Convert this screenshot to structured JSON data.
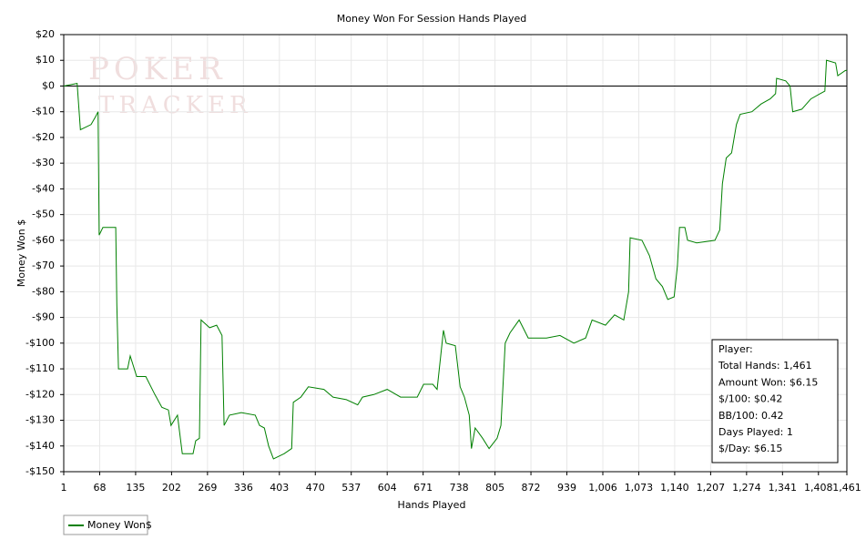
{
  "chart_data": {
    "type": "line",
    "title": "Money Won For Session Hands Played",
    "x_label": "Hands Played",
    "y_label": "Money Won $",
    "watermark": [
      "POKER",
      "TRACKER"
    ],
    "info_box": [
      "Player:",
      "Total Hands: 1,461",
      "Amount Won: $6.15",
      "$/100: $0.42",
      "BB/100: 0.42",
      "Days Played: 1",
      "$/Day: $6.15"
    ],
    "x": [
      1,
      26,
      32,
      52,
      60,
      65,
      67,
      74,
      98,
      100,
      103,
      120,
      125,
      137,
      154,
      171,
      184,
      196,
      201,
      213,
      222,
      242,
      247,
      254,
      257,
      273,
      286,
      296,
      300,
      310,
      332,
      358,
      366,
      375,
      383,
      392,
      412,
      426,
      429,
      443,
      457,
      486,
      503,
      528,
      549,
      558,
      579,
      604,
      629,
      660,
      672,
      689,
      697,
      709,
      714,
      731,
      740,
      748,
      757,
      761,
      768,
      782,
      794,
      809,
      816,
      824,
      833,
      850,
      867,
      901,
      926,
      952,
      974,
      986,
      1011,
      1028,
      1045,
      1054,
      1057,
      1079,
      1093,
      1105,
      1117,
      1127,
      1139,
      1145,
      1149,
      1159,
      1164,
      1181,
      1215,
      1224,
      1229,
      1236,
      1246,
      1255,
      1262,
      1284,
      1301,
      1318,
      1328,
      1330,
      1347,
      1355,
      1360,
      1377,
      1394,
      1411,
      1420,
      1423,
      1440,
      1444,
      1458,
      1461
    ],
    "series": [
      {
        "name": "Money Won$",
        "color": "#008000",
        "values": [
          0,
          1,
          -17,
          -15,
          -12,
          -10,
          -58,
          -55,
          -55,
          -85,
          -110,
          -110,
          -105,
          -113,
          -113,
          -120,
          -125,
          -126,
          -132,
          -128,
          -143,
          -143,
          -138,
          -137,
          -91,
          -94,
          -93,
          -97,
          -132,
          -128,
          -127,
          -128,
          -132,
          -133,
          -140,
          -145,
          -143,
          -141,
          -123,
          -121,
          -117,
          -118,
          -121,
          -122,
          -124,
          -121,
          -120,
          -118,
          -121,
          -121,
          -116,
          -116,
          -118,
          -95,
          -100,
          -101,
          -117,
          -121,
          -128,
          -141,
          -133,
          -137,
          -141,
          -137,
          -132,
          -100,
          -96,
          -91,
          -98,
          -98,
          -97,
          -100,
          -98,
          -91,
          -93,
          -89,
          -91,
          -80,
          -59,
          -60,
          -66,
          -75,
          -78,
          -83,
          -82,
          -70,
          -55,
          -55,
          -60,
          -61,
          -60,
          -56,
          -38,
          -28,
          -26,
          -15,
          -11,
          -10,
          -7,
          -5,
          -3,
          3,
          2,
          0,
          -10,
          -9,
          -5,
          -3,
          -2,
          10,
          9,
          4,
          6,
          6.15
        ]
      }
    ],
    "xlim": [
      1,
      1461
    ],
    "xticks": [
      1,
      68,
      135,
      202,
      269,
      336,
      403,
      470,
      537,
      604,
      671,
      738,
      805,
      872,
      939,
      {
        "value": 1006,
        "label": "1,006"
      },
      {
        "value": 1073,
        "label": "1,073"
      },
      {
        "value": 1140,
        "label": "1,140"
      },
      {
        "value": 1207,
        "label": "1,207"
      },
      {
        "value": 1274,
        "label": "1,274"
      },
      {
        "value": 1341,
        "label": "1,341"
      },
      {
        "value": 1408,
        "label": "1,408"
      },
      {
        "value": 1461,
        "label": "1,461"
      }
    ],
    "ylim": [
      -150,
      20
    ],
    "yticks": [
      {
        "value": 20,
        "label": "$20"
      },
      {
        "value": 10,
        "label": "$10"
      },
      {
        "value": 0,
        "label": "$0"
      },
      {
        "value": -10,
        "label": "-$10"
      },
      {
        "value": -20,
        "label": "-$20"
      },
      {
        "value": -30,
        "label": "-$30"
      },
      {
        "value": -40,
        "label": "-$40"
      },
      {
        "value": -50,
        "label": "-$50"
      },
      {
        "value": -60,
        "label": "-$60"
      },
      {
        "value": -70,
        "label": "-$70"
      },
      {
        "value": -80,
        "label": "-$80"
      },
      {
        "value": -90,
        "label": "-$90"
      },
      {
        "value": -100,
        "label": "-$100"
      },
      {
        "value": -110,
        "label": "-$110"
      },
      {
        "value": -120,
        "label": "-$120"
      },
      {
        "value": -130,
        "label": "-$130"
      },
      {
        "value": -140,
        "label": "-$140"
      },
      {
        "value": -150,
        "label": "-$150"
      }
    ],
    "grid": true
  }
}
